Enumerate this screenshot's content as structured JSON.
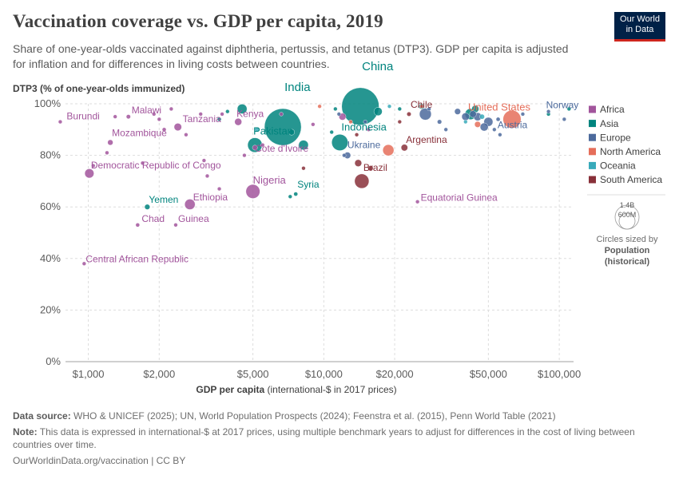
{
  "header": {
    "title": "Vaccination coverage vs. GDP per capita, 2019",
    "subtitle": "Share of one-year-olds vaccinated against diphtheria, pertussis, and tetanus (DTP3). GDP per capita is adjusted for inflation and for differences in living costs between countries.",
    "logo_line1": "Our World",
    "logo_line2": "in Data"
  },
  "footer": {
    "source_label": "Data source:",
    "source": "WHO & UNICEF (2025); UN, World Population Prospects (2024); Feenstra et al. (2015), Penn World Table (2021)",
    "note_label": "Note:",
    "note": "This data is expressed in international-$ at 2017 prices, using multiple benchmark years to adjust for differences in the cost of living between countries over time.",
    "url": "OurWorldinData.org/vaccination | CC BY"
  },
  "chart_data": {
    "type": "scatter",
    "title": "Vaccination coverage vs. GDP per capita, 2019",
    "ylabel": "DTP3 (% of one-year-olds immunized)",
    "xlabel_bold": "GDP per capita",
    "xlabel_rest": " (international-$ in 2017 prices)",
    "xscale": "log",
    "xlim": [
      800,
      115000
    ],
    "ylim": [
      0,
      100
    ],
    "xticks": [
      {
        "v": 1000,
        "label": "$1,000"
      },
      {
        "v": 2000,
        "label": "$2,000"
      },
      {
        "v": 5000,
        "label": "$5,000"
      },
      {
        "v": 10000,
        "label": "$10,000"
      },
      {
        "v": 20000,
        "label": "$20,000"
      },
      {
        "v": 50000,
        "label": "$50,000"
      },
      {
        "v": 100000,
        "label": "$100,000"
      }
    ],
    "yticks": [
      {
        "v": 0,
        "label": "0%"
      },
      {
        "v": 20,
        "label": "20%"
      },
      {
        "v": 40,
        "label": "40%"
      },
      {
        "v": 60,
        "label": "60%"
      },
      {
        "v": 80,
        "label": "80%"
      },
      {
        "v": 100,
        "label": "100%"
      }
    ],
    "regions": [
      {
        "name": "Africa",
        "color": "#a2559c"
      },
      {
        "name": "Asia",
        "color": "#00847e"
      },
      {
        "name": "Europe",
        "color": "#4c6a9c"
      },
      {
        "name": "North America",
        "color": "#e56e5a"
      },
      {
        "name": "Oceania",
        "color": "#38aaba"
      },
      {
        "name": "South America",
        "color": "#883039"
      }
    ],
    "size_legend": {
      "big": "1.4B",
      "small": "600M",
      "caption1": "Circles sized by",
      "caption2": "Population",
      "caption3": "(historical)"
    },
    "labeled_points": [
      {
        "name": "Burundi",
        "gdp": 760,
        "dtp3": 93,
        "pop": 11.5,
        "region": "Africa"
      },
      {
        "name": "Malawi",
        "gdp": 1480,
        "dtp3": 95,
        "pop": 18.9,
        "region": "Africa"
      },
      {
        "name": "Tanzania",
        "gdp": 2400,
        "dtp3": 91,
        "pop": 58,
        "region": "Africa"
      },
      {
        "name": "Kenya",
        "gdp": 4330,
        "dtp3": 93,
        "pop": 52,
        "region": "Africa"
      },
      {
        "name": "Mozambique",
        "gdp": 1240,
        "dtp3": 85,
        "pop": 30,
        "region": "Africa"
      },
      {
        "name": "Cote d'Ivoire",
        "gdp": 5100,
        "dtp3": 83,
        "pop": 26,
        "region": "Africa"
      },
      {
        "name": "Democratic Republic of Congo",
        "gdp": 1010,
        "dtp3": 73,
        "pop": 87,
        "region": "Africa"
      },
      {
        "name": "Nigeria",
        "gdp": 5000,
        "dtp3": 66,
        "pop": 200,
        "region": "Africa"
      },
      {
        "name": "Ethiopia",
        "gdp": 2700,
        "dtp3": 61,
        "pop": 112,
        "region": "Africa"
      },
      {
        "name": "Chad",
        "gdp": 1620,
        "dtp3": 53,
        "pop": 16,
        "region": "Africa"
      },
      {
        "name": "Guinea",
        "gdp": 2350,
        "dtp3": 53,
        "pop": 12.8,
        "region": "Africa"
      },
      {
        "name": "Central African Republic",
        "gdp": 960,
        "dtp3": 38,
        "pop": 4.7,
        "region": "Africa"
      },
      {
        "name": "Equatorial Guinea",
        "gdp": 25000,
        "dtp3": 62,
        "pop": 1.4,
        "region": "Africa"
      },
      {
        "name": "India",
        "gdp": 6700,
        "dtp3": 91,
        "pop": 1380,
        "region": "Asia"
      },
      {
        "name": "China",
        "gdp": 14300,
        "dtp3": 99,
        "pop": 1420,
        "region": "Asia"
      },
      {
        "name": "Pakistan",
        "gdp": 5100,
        "dtp3": 84,
        "pop": 216,
        "region": "Asia"
      },
      {
        "name": "Indonesia",
        "gdp": 11700,
        "dtp3": 85,
        "pop": 270,
        "region": "Asia"
      },
      {
        "name": "Yemen",
        "gdp": 1780,
        "dtp3": 60,
        "pop": 29,
        "region": "Asia"
      },
      {
        "name": "Syria",
        "gdp": 7600,
        "dtp3": 65,
        "pop": 17,
        "region": "Asia"
      },
      {
        "name": "Norway",
        "gdp": 90000,
        "dtp3": 97,
        "pop": 5.4,
        "region": "Europe"
      },
      {
        "name": "Austria",
        "gdp": 53000,
        "dtp3": 90,
        "pop": 8.9,
        "region": "Europe"
      },
      {
        "name": "Ukraine",
        "gdp": 12600,
        "dtp3": 80,
        "pop": 44,
        "region": "Europe"
      },
      {
        "name": "United States",
        "gdp": 63000,
        "dtp3": 94,
        "pop": 330,
        "region": "North America"
      },
      {
        "name": "Chile",
        "gdp": 23000,
        "dtp3": 96,
        "pop": 19,
        "region": "South America"
      },
      {
        "name": "Argentina",
        "gdp": 22000,
        "dtp3": 83,
        "pop": 45,
        "region": "South America"
      },
      {
        "name": "Brazil",
        "gdp": 14500,
        "dtp3": 70,
        "pop": 211,
        "region": "South America"
      }
    ],
    "other_points": [
      {
        "gdp": 1050,
        "dtp3": 76,
        "pop": 6,
        "region": "Africa"
      },
      {
        "gdp": 1200,
        "dtp3": 81,
        "pop": 8,
        "region": "Africa"
      },
      {
        "gdp": 1300,
        "dtp3": 95,
        "pop": 12,
        "region": "Africa"
      },
      {
        "gdp": 1700,
        "dtp3": 77,
        "pop": 10,
        "region": "Africa"
      },
      {
        "gdp": 1900,
        "dtp3": 96,
        "pop": 5,
        "region": "Africa"
      },
      {
        "gdp": 2000,
        "dtp3": 94,
        "pop": 14,
        "region": "Africa"
      },
      {
        "gdp": 2100,
        "dtp3": 90,
        "pop": 16,
        "region": "Africa"
      },
      {
        "gdp": 2250,
        "dtp3": 98,
        "pop": 6,
        "region": "Africa"
      },
      {
        "gdp": 2600,
        "dtp3": 88,
        "pop": 9,
        "region": "Africa"
      },
      {
        "gdp": 3000,
        "dtp3": 96,
        "pop": 11,
        "region": "Africa"
      },
      {
        "gdp": 3100,
        "dtp3": 78,
        "pop": 7,
        "region": "Africa"
      },
      {
        "gdp": 3200,
        "dtp3": 72,
        "pop": 8,
        "region": "Africa"
      },
      {
        "gdp": 3600,
        "dtp3": 67,
        "pop": 5,
        "region": "Africa"
      },
      {
        "gdp": 3700,
        "dtp3": 96,
        "pop": 3,
        "region": "Africa"
      },
      {
        "gdp": 4600,
        "dtp3": 80,
        "pop": 14,
        "region": "Africa"
      },
      {
        "gdp": 5500,
        "dtp3": 84,
        "pop": 9,
        "region": "Africa"
      },
      {
        "gdp": 6600,
        "dtp3": 96,
        "pop": 6,
        "region": "Africa"
      },
      {
        "gdp": 9000,
        "dtp3": 92,
        "pop": 6,
        "region": "Africa"
      },
      {
        "gdp": 12000,
        "dtp3": 95,
        "pop": 50,
        "region": "Africa"
      },
      {
        "gdp": 15500,
        "dtp3": 90,
        "pop": 3,
        "region": "Africa"
      },
      {
        "gdp": 3600,
        "dtp3": 94,
        "pop": 16,
        "region": "Asia"
      },
      {
        "gdp": 3900,
        "dtp3": 97,
        "pop": 11,
        "region": "Asia"
      },
      {
        "gdp": 4500,
        "dtp3": 98,
        "pop": 97,
        "region": "Asia"
      },
      {
        "gdp": 8200,
        "dtp3": 84,
        "pop": 96,
        "region": "Asia"
      },
      {
        "gdp": 7200,
        "dtp3": 64,
        "pop": 11,
        "region": "Asia"
      },
      {
        "gdp": 7300,
        "dtp3": 89,
        "pop": 36,
        "region": "Asia"
      },
      {
        "gdp": 10800,
        "dtp3": 89,
        "pop": 8,
        "region": "Asia"
      },
      {
        "gdp": 11200,
        "dtp3": 98,
        "pop": 10,
        "region": "Asia"
      },
      {
        "gdp": 17000,
        "dtp3": 97,
        "pop": 70,
        "region": "Asia"
      },
      {
        "gdp": 21000,
        "dtp3": 98,
        "pop": 4,
        "region": "Asia"
      },
      {
        "gdp": 26000,
        "dtp3": 99,
        "pop": 30,
        "region": "Asia"
      },
      {
        "gdp": 42000,
        "dtp3": 96,
        "pop": 124,
        "region": "Asia"
      },
      {
        "gdp": 44000,
        "dtp3": 98,
        "pop": 52,
        "region": "Asia"
      },
      {
        "gdp": 90000,
        "dtp3": 96,
        "pop": 6,
        "region": "Asia"
      },
      {
        "gdp": 110000,
        "dtp3": 98,
        "pop": 3,
        "region": "Asia"
      },
      {
        "gdp": 11600,
        "dtp3": 96,
        "pop": 9,
        "region": "Europe"
      },
      {
        "gdp": 12200,
        "dtp3": 80,
        "pop": 7,
        "region": "Europe"
      },
      {
        "gdp": 15000,
        "dtp3": 93,
        "pop": 4,
        "region": "Europe"
      },
      {
        "gdp": 27000,
        "dtp3": 96,
        "pop": 144,
        "region": "Europe"
      },
      {
        "gdp": 28000,
        "dtp3": 98,
        "pop": 10,
        "region": "Europe"
      },
      {
        "gdp": 31000,
        "dtp3": 93,
        "pop": 20,
        "region": "Europe"
      },
      {
        "gdp": 33000,
        "dtp3": 90,
        "pop": 4,
        "region": "Europe"
      },
      {
        "gdp": 37000,
        "dtp3": 97,
        "pop": 38,
        "region": "Europe"
      },
      {
        "gdp": 40000,
        "dtp3": 95,
        "pop": 60,
        "region": "Europe"
      },
      {
        "gdp": 43000,
        "dtp3": 96,
        "pop": 47,
        "region": "Europe"
      },
      {
        "gdp": 45000,
        "dtp3": 95,
        "pop": 67,
        "region": "Europe"
      },
      {
        "gdp": 48000,
        "dtp3": 91,
        "pop": 67,
        "region": "Europe"
      },
      {
        "gdp": 50000,
        "dtp3": 93,
        "pop": 83,
        "region": "Europe"
      },
      {
        "gdp": 55000,
        "dtp3": 94,
        "pop": 17,
        "region": "Europe"
      },
      {
        "gdp": 56000,
        "dtp3": 88,
        "pop": 5,
        "region": "Europe"
      },
      {
        "gdp": 70000,
        "dtp3": 96,
        "pop": 8,
        "region": "Europe"
      },
      {
        "gdp": 105000,
        "dtp3": 94,
        "pop": 5,
        "region": "Europe"
      },
      {
        "gdp": 9600,
        "dtp3": 99,
        "pop": 4,
        "region": "North America"
      },
      {
        "gdp": 13000,
        "dtp3": 93,
        "pop": 3,
        "region": "North America"
      },
      {
        "gdp": 18800,
        "dtp3": 82,
        "pop": 127,
        "region": "North America"
      },
      {
        "gdp": 26000,
        "dtp3": 99,
        "pop": 5,
        "region": "North America"
      },
      {
        "gdp": 45000,
        "dtp3": 92,
        "pop": 37,
        "region": "North America"
      },
      {
        "gdp": 5200,
        "dtp3": 90,
        "pop": 1,
        "region": "Oceania"
      },
      {
        "gdp": 19000,
        "dtp3": 99,
        "pop": 2,
        "region": "Oceania"
      },
      {
        "gdp": 40000,
        "dtp3": 93,
        "pop": 5,
        "region": "Oceania"
      },
      {
        "gdp": 47000,
        "dtp3": 95,
        "pop": 25,
        "region": "Oceania"
      },
      {
        "gdp": 8200,
        "dtp3": 75,
        "pop": 6,
        "region": "South America"
      },
      {
        "gdp": 13800,
        "dtp3": 88,
        "pop": 11,
        "region": "South America"
      },
      {
        "gdp": 14000,
        "dtp3": 77,
        "pop": 50,
        "region": "South America"
      },
      {
        "gdp": 15800,
        "dtp3": 75,
        "pop": 28,
        "region": "South America"
      },
      {
        "gdp": 21000,
        "dtp3": 93,
        "pop": 3,
        "region": "South America"
      }
    ]
  }
}
